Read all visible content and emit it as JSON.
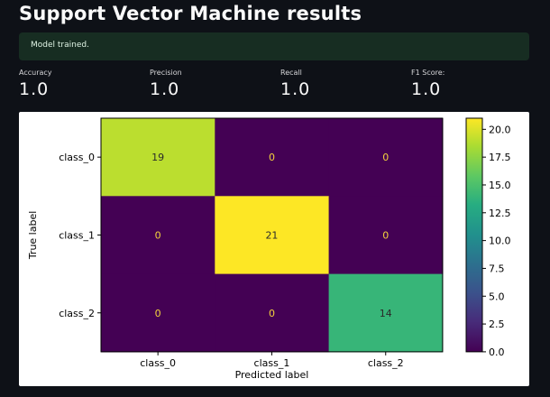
{
  "page": {
    "title": "Support Vector Machine results",
    "status_message": "Model trained."
  },
  "metrics": [
    {
      "label": "Accuracy",
      "value": "1.0"
    },
    {
      "label": "Precision",
      "value": "1.0"
    },
    {
      "label": "Recall",
      "value": "1.0"
    },
    {
      "label": "F1 Score:",
      "value": "1.0"
    }
  ],
  "colors": {
    "background": "#0e1117",
    "alert_bg": "#172d22",
    "text": "#fafafa"
  },
  "chart_data": {
    "type": "heatmap",
    "title": "",
    "xlabel": "Predicted label",
    "ylabel": "True label",
    "x_categories": [
      "class_0",
      "class_1",
      "class_2"
    ],
    "y_categories": [
      "class_0",
      "class_1",
      "class_2"
    ],
    "values": [
      [
        19,
        0,
        0
      ],
      [
        0,
        21,
        0
      ],
      [
        0,
        0,
        14
      ]
    ],
    "colorscale": "viridis",
    "colorbar_range": [
      0,
      21
    ],
    "colorbar_ticks": [
      "0.0",
      "2.5",
      "5.0",
      "7.5",
      "10.0",
      "12.5",
      "15.0",
      "17.5",
      "20.0"
    ]
  }
}
